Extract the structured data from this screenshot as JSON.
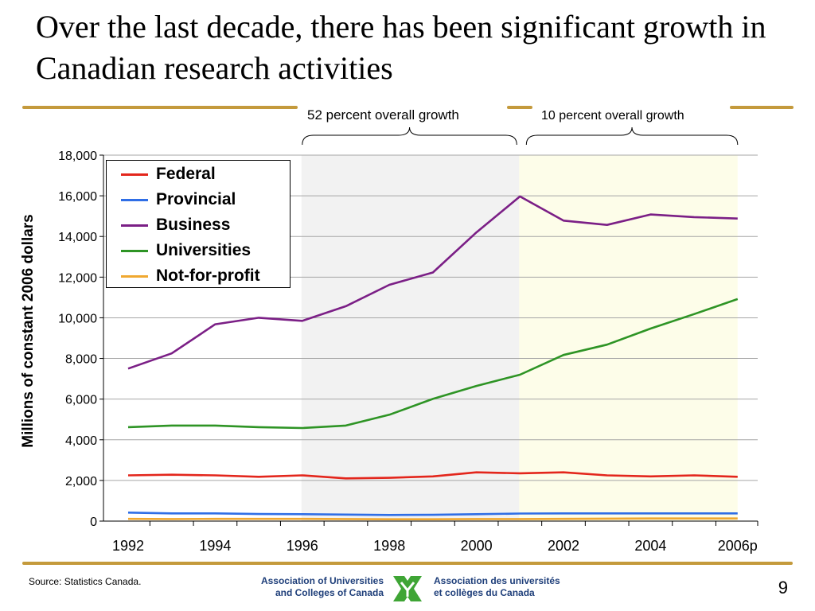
{
  "slide": {
    "title": "Over the last decade, there has been significant growth in Canadian research activities",
    "page_number": "9",
    "source": "Source: Statistics Canada."
  },
  "annotations": {
    "period1": "52 percent overall growth",
    "period2": "10 percent overall growth"
  },
  "organization": {
    "en_line1": "Association of Universities",
    "en_line2": "and Colleges of Canada",
    "fr_line1": "Association des universités",
    "fr_line2": "et collèges du Canada"
  },
  "colors": {
    "gold_rule": "#c49a3c",
    "shade_period1": "#f2f2f2",
    "shade_period2": "#fdfde9",
    "logo_green": "#3fa535",
    "org_text": "#1f3f7a"
  },
  "chart_data": {
    "type": "line",
    "ylabel": "Millions of constant 2006 dollars",
    "xlabel": "",
    "ylim": [
      0,
      18000
    ],
    "yticks": [
      0,
      2000,
      4000,
      6000,
      8000,
      10000,
      12000,
      14000,
      16000,
      18000
    ],
    "ytick_labels": [
      "0",
      "2,000",
      "4,000",
      "6,000",
      "8,000",
      "10,000",
      "12,000",
      "14,000",
      "16,000",
      "18,000"
    ],
    "categories": [
      "1992",
      "1993",
      "1994",
      "1995",
      "1996",
      "1997",
      "1998",
      "1999",
      "2000",
      "2001",
      "2002",
      "2003",
      "2004",
      "2005",
      "2006p"
    ],
    "xtick_labels": [
      "1992",
      "",
      "1994",
      "",
      "1996",
      "",
      "1998",
      "",
      "2000",
      "",
      "2002",
      "",
      "2004",
      "",
      "2006p"
    ],
    "shaded_periods": [
      {
        "from": "1996",
        "to": "2001"
      },
      {
        "from": "2001",
        "to": "2006p"
      }
    ],
    "legend_position": "top-left",
    "grid": "horizontal",
    "series": [
      {
        "name": "Federal",
        "color": "#e3261c",
        "values": [
          2250,
          2280,
          2250,
          2180,
          2250,
          2100,
          2130,
          2200,
          2400,
          2350,
          2400,
          2250,
          2200,
          2250,
          2180
        ]
      },
      {
        "name": "Provincial",
        "color": "#2f6ee6",
        "values": [
          420,
          380,
          380,
          350,
          340,
          320,
          300,
          310,
          340,
          370,
          380,
          380,
          380,
          380,
          380
        ]
      },
      {
        "name": "Business",
        "color": "#7b1f86",
        "values": [
          7500,
          8250,
          9680,
          10000,
          9850,
          10570,
          11620,
          12230,
          14200,
          15970,
          14780,
          14570,
          15080,
          14950,
          14880
        ]
      },
      {
        "name": "Universities",
        "color": "#2e9425",
        "values": [
          4620,
          4700,
          4700,
          4620,
          4580,
          4700,
          5230,
          6010,
          6650,
          7200,
          8170,
          8680,
          9470,
          10180,
          10920
        ]
      },
      {
        "name": "Not-for-profit",
        "color": "#f0a830",
        "values": [
          110,
          100,
          110,
          110,
          110,
          100,
          90,
          90,
          100,
          100,
          110,
          120,
          130,
          130,
          130
        ]
      }
    ]
  }
}
